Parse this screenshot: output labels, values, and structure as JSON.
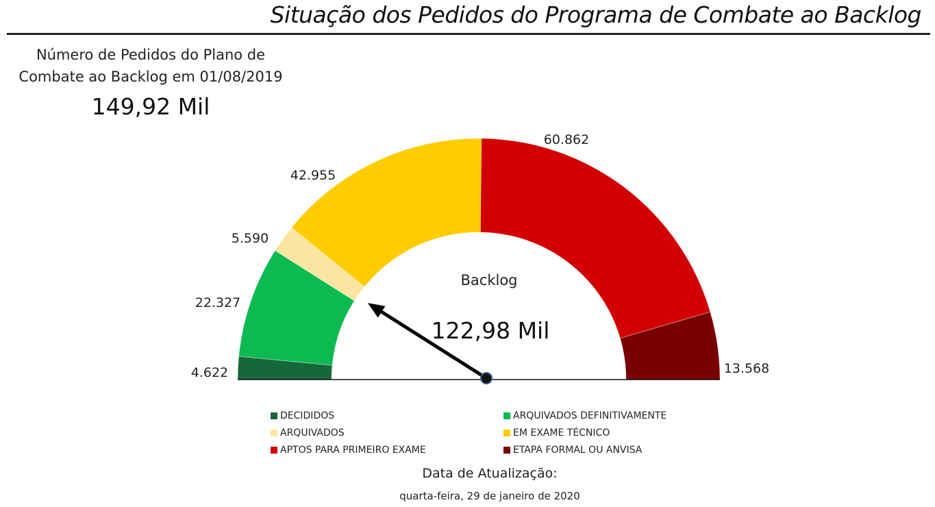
{
  "header": {
    "title": "Situação dos Pedidos do Programa de Combate ao Backlog"
  },
  "kpi": {
    "label": "Número de Pedidos do Plano de Combate ao Backlog em 01/08/2019",
    "value": "149,92 Mil"
  },
  "chart_data": {
    "type": "gauge",
    "categories": [
      "DECIDIDOS",
      "ARQUIVADOS DEFINITIVAMENTE",
      "ARQUIVADOS",
      "EM EXAME TÉCNICO",
      "APTOS PARA PRIMEIRO EXAME",
      "ETAPA FORMAL OU ANVISA"
    ],
    "values": [
      4622,
      22327,
      5590,
      42955,
      60862,
      13568
    ],
    "value_labels": [
      "4.622",
      "22.327",
      "5.590",
      "42.955",
      "60.862",
      "13.568"
    ],
    "colors": [
      "#16683a",
      "#0dba52",
      "#fbe5a0",
      "#ffcc00",
      "#d20000",
      "#780000"
    ],
    "needle": {
      "label": "Backlog",
      "value_label": "122,98 Mil",
      "value": 122980,
      "total": 149924
    },
    "legend_position": "bottom"
  },
  "footer": {
    "update_label": "Data de Atualização:",
    "update_date": "quarta-feira, 29 de janeiro de 2020"
  }
}
